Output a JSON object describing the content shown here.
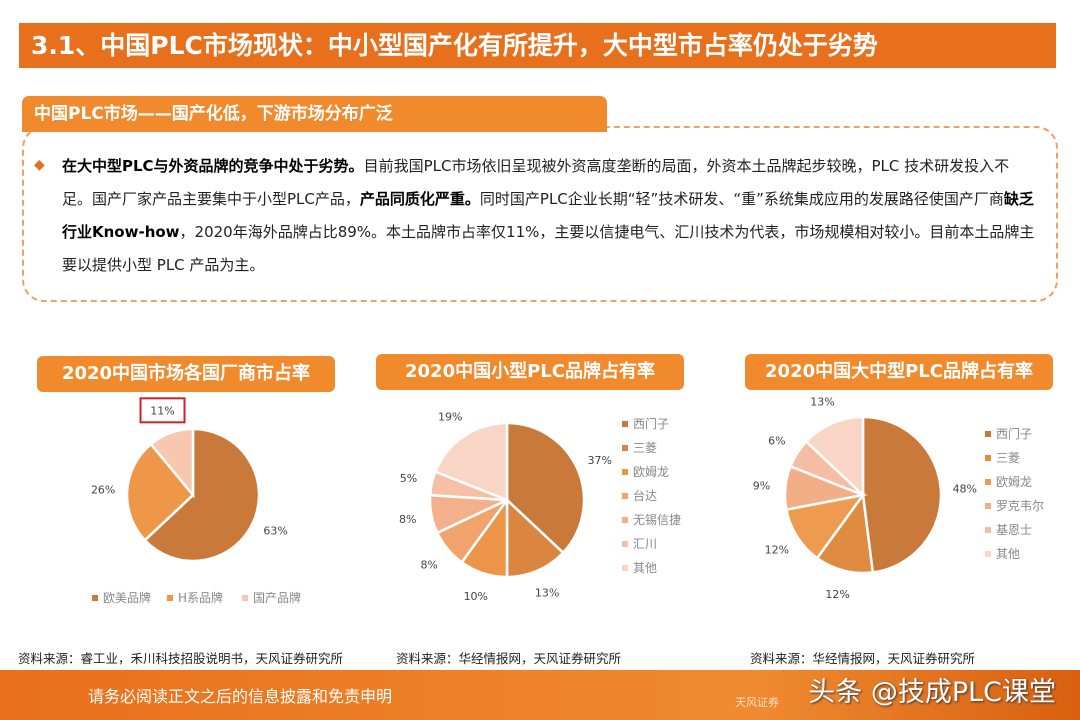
{
  "header": {
    "title": "3.1、中国PLC市场现状：中小型国产化有所提升，大中型市占率仍处于劣势"
  },
  "section": {
    "tab": "中国PLC市场——国产化低，下游市场分布广泛"
  },
  "body": {
    "segments": [
      {
        "text": "在大中型PLC与外资品牌的竞争中处于劣势。",
        "bold": true
      },
      {
        "text": "目前我国PLC市场依旧呈现被外资高度垄断的局面，外资本土品牌起步较晚，PLC 技术研发投入不足。国产厂家产品主要集中于小型PLC产品，",
        "bold": false
      },
      {
        "text": "产品同质化严重。",
        "bold": true
      },
      {
        "text": "同时国产PLC企业长期“轻”技术研发、“重”系统集成应用的发展路径使国产厂商",
        "bold": false
      },
      {
        "text": "缺乏行业Know-how",
        "bold": true
      },
      {
        "text": "，2020年海外品牌占比89%。本土品牌市占率仅11%，主要以信捷电气、汇川技术为代表，市场规模相对较小。目前本土品牌主要以提供小型 PLC 产品为主。",
        "bold": false
      }
    ]
  },
  "chart_data": [
    {
      "type": "pie",
      "title": "2020中国市场各国厂商市占率",
      "categories": [
        "欧美品牌",
        "日系品牌",
        "国产品牌"
      ],
      "legend_labels": [
        "欧美品牌",
        "H系品牌",
        "国产品牌"
      ],
      "values": [
        63,
        26,
        11
      ],
      "labels": [
        "63%",
        "26%",
        "11%"
      ],
      "colors": [
        "#c97a3b",
        "#ef9749",
        "#f7c7b0"
      ],
      "legend": "bottom",
      "highlight": "国产品牌",
      "highlight_color": "#d0202a",
      "source": "资料来源：睿工业，禾川科技招股说明书，天风证券研究所"
    },
    {
      "type": "pie",
      "title": "2020中国小型PLC品牌占有率",
      "categories": [
        "西门子",
        "三菱",
        "欧姆龙",
        "台达",
        "无锡信捷",
        "汇川",
        "其他"
      ],
      "values": [
        37,
        13,
        10,
        8,
        8,
        5,
        19
      ],
      "labels": [
        "37%",
        "13%",
        "10%",
        "8%",
        "8%",
        "5%",
        "19%"
      ],
      "colors": [
        "#c97a3b",
        "#db8640",
        "#ec9548",
        "#f0a36a",
        "#f3b08a",
        "#f5c0a6",
        "#f8d5c5"
      ],
      "legend": "right",
      "source": "资料来源：华经情报网，天风证券研究所"
    },
    {
      "type": "pie",
      "title": "2020中国大中型PLC品牌占有率",
      "categories": [
        "西门子",
        "三菱",
        "欧姆龙",
        "罗克韦尔",
        "基恩士",
        "其他"
      ],
      "values": [
        48,
        12,
        12,
        9,
        6,
        13
      ],
      "labels": [
        "48%",
        "12%",
        "12%",
        "9%",
        "6%",
        "13%"
      ],
      "colors": [
        "#c97a3b",
        "#e08b42",
        "#ee9a4f",
        "#f2ae84",
        "#f5bea2",
        "#f8d5c5"
      ],
      "legend": "right",
      "source": "资料来源：华经情报网，天风证券研究所"
    }
  ],
  "footer": {
    "note": "请务必阅读正文之后的信息披露和免责申明",
    "watermark": "头条 @技成PLC课堂",
    "logo": "天风证券"
  }
}
